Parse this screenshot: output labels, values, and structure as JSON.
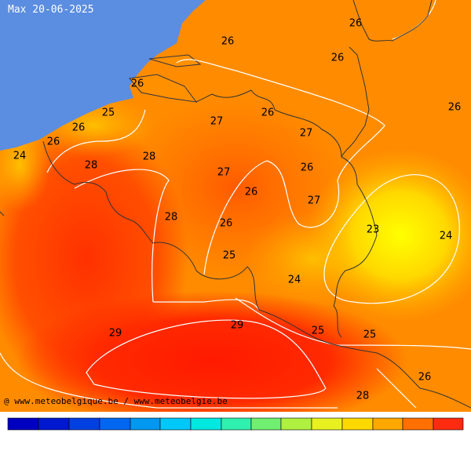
{
  "header": {
    "title": "Max 20-06-2025"
  },
  "labels": [
    26,
    26,
    26,
    26,
    26,
    25,
    26,
    26,
    24,
    27,
    26,
    27,
    28,
    28,
    27,
    26,
    26,
    27,
    28,
    26,
    23,
    24,
    25,
    24,
    29,
    29,
    25,
    25,
    26,
    28
  ],
  "footer": {
    "credit": "@ www.meteobelgique.be / www.meteobelgie.be"
  }
}
